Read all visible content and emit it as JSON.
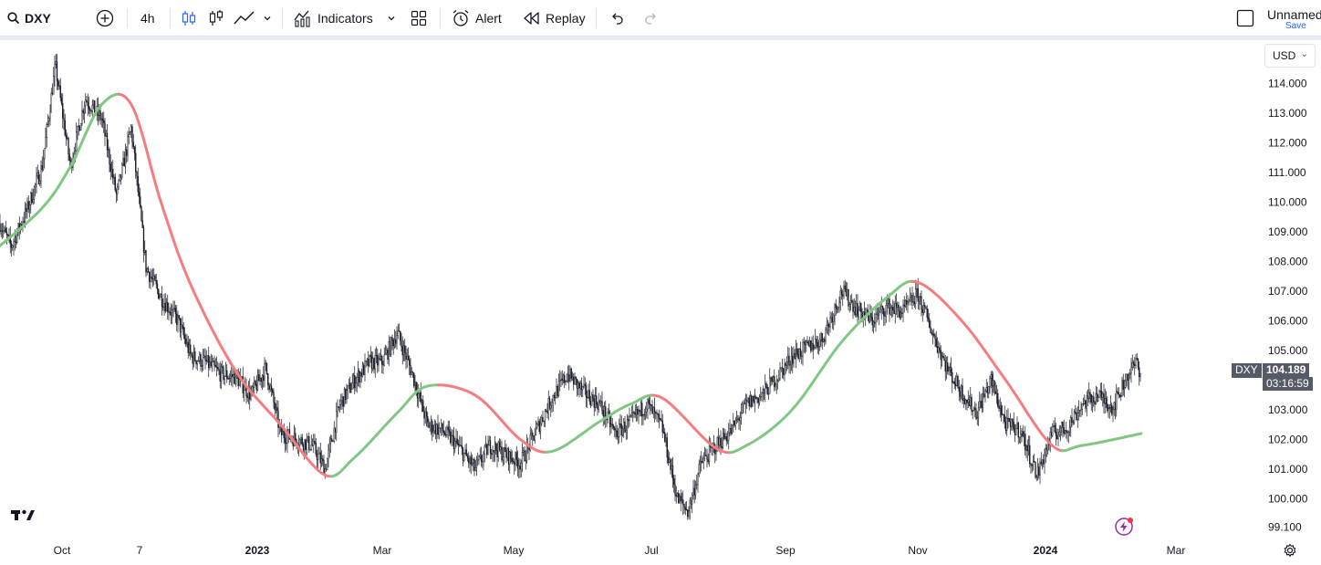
{
  "toolbar": {
    "symbol": "DXY",
    "interval": "4h",
    "indicators_label": "Indicators",
    "alert_label": "Alert",
    "replay_label": "Replay",
    "layout_name": "Unnamed",
    "save_label": "Save"
  },
  "price_scale": {
    "currency": "USD",
    "ticks": [
      "114.000",
      "113.000",
      "112.000",
      "111.000",
      "110.000",
      "109.000",
      "108.000",
      "107.000",
      "106.000",
      "105.000",
      "104.000",
      "103.000",
      "102.000",
      "101.000",
      "100.000",
      "99.100"
    ]
  },
  "time_scale": {
    "ticks": [
      {
        "label": "Oct",
        "bold": false
      },
      {
        "label": "7",
        "bold": false
      },
      {
        "label": "2023",
        "bold": true
      },
      {
        "label": "Mar",
        "bold": false
      },
      {
        "label": "May",
        "bold": false
      },
      {
        "label": "Jul",
        "bold": false
      },
      {
        "label": "Sep",
        "bold": false
      },
      {
        "label": "Nov",
        "bold": false
      },
      {
        "label": "2024",
        "bold": true
      },
      {
        "label": "Mar",
        "bold": false
      }
    ]
  },
  "last_price": {
    "symbol": "DXY",
    "value": "104.189",
    "countdown": "03:16:59"
  },
  "colors": {
    "ma_up": "#81c784",
    "ma_down": "#f77c80",
    "candles": "#131722",
    "tag_bg": "#555a66"
  },
  "chart_data": {
    "type": "line",
    "series": [
      {
        "values_description": "DXY 4h price path (approximate closes)",
        "points": [
          [
            "2022-09-01",
            109.6
          ],
          [
            "2022-09-08",
            108.5
          ],
          [
            "2022-09-15",
            109.7
          ],
          [
            "2022-09-22",
            111.2
          ],
          [
            "2022-09-28",
            114.6
          ],
          [
            "2022-10-05",
            111.2
          ],
          [
            "2022-10-12",
            113.5
          ],
          [
            "2022-10-20",
            112.8
          ],
          [
            "2022-10-27",
            110.2
          ],
          [
            "2022-11-03",
            112.5
          ],
          [
            "2022-11-10",
            107.8
          ],
          [
            "2022-11-17",
            106.8
          ],
          [
            "2022-11-25",
            106.0
          ],
          [
            "2022-12-01",
            104.8
          ],
          [
            "2022-12-08",
            104.6
          ],
          [
            "2022-12-15",
            104.2
          ],
          [
            "2022-12-22",
            104.1
          ],
          [
            "2022-12-29",
            103.5
          ],
          [
            "2023-01-05",
            104.4
          ],
          [
            "2023-01-12",
            102.2
          ],
          [
            "2023-01-20",
            102.0
          ],
          [
            "2023-01-27",
            101.8
          ],
          [
            "2023-02-02",
            101.0
          ],
          [
            "2023-02-09",
            103.2
          ],
          [
            "2023-02-16",
            104.0
          ],
          [
            "2023-02-23",
            104.6
          ],
          [
            "2023-03-01",
            104.6
          ],
          [
            "2023-03-08",
            105.6
          ],
          [
            "2023-03-15",
            104.2
          ],
          [
            "2023-03-22",
            102.5
          ],
          [
            "2023-03-29",
            102.3
          ],
          [
            "2023-04-05",
            101.8
          ],
          [
            "2023-04-13",
            101.0
          ],
          [
            "2023-04-20",
            101.8
          ],
          [
            "2023-04-27",
            101.5
          ],
          [
            "2023-05-04",
            101.2
          ],
          [
            "2023-05-11",
            102.3
          ],
          [
            "2023-05-18",
            103.4
          ],
          [
            "2023-05-25",
            104.2
          ],
          [
            "2023-06-01",
            103.6
          ],
          [
            "2023-06-08",
            103.2
          ],
          [
            "2023-06-15",
            102.2
          ],
          [
            "2023-06-22",
            102.6
          ],
          [
            "2023-06-29",
            103.2
          ],
          [
            "2023-07-06",
            102.4
          ],
          [
            "2023-07-13",
            100.0
          ],
          [
            "2023-07-18",
            99.6
          ],
          [
            "2023-07-24",
            101.2
          ],
          [
            "2023-07-31",
            101.8
          ],
          [
            "2023-08-07",
            102.3
          ],
          [
            "2023-08-14",
            103.2
          ],
          [
            "2023-08-21",
            103.5
          ],
          [
            "2023-08-28",
            104.1
          ],
          [
            "2023-09-04",
            104.8
          ],
          [
            "2023-09-11",
            105.1
          ],
          [
            "2023-09-18",
            105.4
          ],
          [
            "2023-09-27",
            107.0
          ],
          [
            "2023-10-04",
            106.4
          ],
          [
            "2023-10-11",
            106.0
          ],
          [
            "2023-10-18",
            106.5
          ],
          [
            "2023-10-25",
            106.3
          ],
          [
            "2023-11-01",
            106.9
          ],
          [
            "2023-11-08",
            105.6
          ],
          [
            "2023-11-15",
            104.4
          ],
          [
            "2023-11-22",
            103.6
          ],
          [
            "2023-11-29",
            102.9
          ],
          [
            "2023-12-06",
            104.0
          ],
          [
            "2023-12-13",
            102.5
          ],
          [
            "2023-12-20",
            102.3
          ],
          [
            "2023-12-28",
            100.8
          ],
          [
            "2024-01-04",
            102.2
          ],
          [
            "2024-01-11",
            102.4
          ],
          [
            "2024-01-18",
            103.2
          ],
          [
            "2024-01-25",
            103.5
          ],
          [
            "2024-02-01",
            103.1
          ],
          [
            "2024-02-08",
            104.2
          ],
          [
            "2024-02-12",
            104.6
          ],
          [
            "2024-02-14",
            104.189
          ]
        ]
      },
      {
        "name": "",
        "values_description": "moving average (green rising, red falling)",
        "points": [
          [
            "2022-09-01",
            108.4
          ],
          [
            "2022-09-22",
            109.8
          ],
          [
            "2022-10-05",
            111.2
          ],
          [
            "2022-10-20",
            113.3
          ],
          [
            "2022-11-03",
            113.3
          ],
          [
            "2022-11-17",
            110.0
          ],
          [
            "2022-12-01",
            107.2
          ],
          [
            "2022-12-22",
            104.3
          ],
          [
            "2023-01-12",
            102.5
          ],
          [
            "2023-02-02",
            100.8
          ],
          [
            "2023-02-16",
            101.4
          ],
          [
            "2023-03-08",
            102.9
          ],
          [
            "2023-03-22",
            103.8
          ],
          [
            "2023-04-13",
            103.5
          ],
          [
            "2023-05-04",
            102.0
          ],
          [
            "2023-05-18",
            101.6
          ],
          [
            "2023-06-08",
            102.6
          ],
          [
            "2023-06-22",
            103.2
          ],
          [
            "2023-07-06",
            103.4
          ],
          [
            "2023-07-31",
            101.7
          ],
          [
            "2023-08-14",
            101.8
          ],
          [
            "2023-09-04",
            103.0
          ],
          [
            "2023-09-27",
            105.3
          ],
          [
            "2023-10-18",
            106.8
          ],
          [
            "2023-11-01",
            107.3
          ],
          [
            "2023-11-22",
            106.0
          ],
          [
            "2023-12-13",
            104.0
          ],
          [
            "2024-01-04",
            101.8
          ],
          [
            "2024-01-18",
            101.8
          ],
          [
            "2024-02-14",
            102.2
          ]
        ]
      }
    ],
    "ylim": [
      99.1,
      114.6
    ],
    "y_ticks": [
      114,
      113,
      112,
      111,
      110,
      109,
      108,
      107,
      106,
      105,
      104,
      103,
      102,
      101,
      100,
      99.1
    ],
    "x_tick_labels": [
      "Oct",
      "7",
      "2023",
      "Mar",
      "May",
      "Jul",
      "Sep",
      "Nov",
      "2024",
      "Mar"
    ],
    "grid": false
  }
}
